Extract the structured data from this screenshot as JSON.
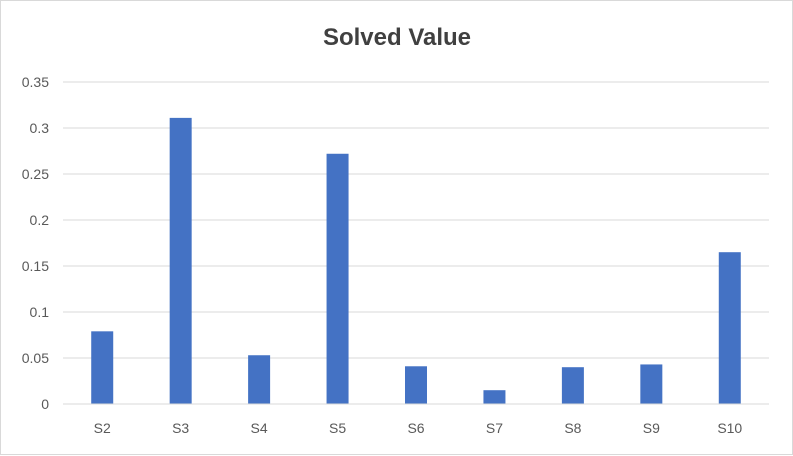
{
  "chart_data": {
    "type": "bar",
    "title": "Solved Value",
    "xlabel": "",
    "ylabel": "",
    "categories": [
      "S2",
      "S3",
      "S4",
      "S5",
      "S6",
      "S7",
      "S8",
      "S9",
      "S10"
    ],
    "values": [
      0.079,
      0.311,
      0.053,
      0.272,
      0.041,
      0.015,
      0.04,
      0.043,
      0.165
    ],
    "ylim": [
      0,
      0.35
    ],
    "yticks": [
      "0",
      "0.05",
      "0.1",
      "0.15",
      "0.2",
      "0.25",
      "0.3",
      "0.35"
    ],
    "grid": true,
    "legend": "none",
    "bar_color": "#4472c4",
    "grid_color": "#d9d9d9"
  }
}
